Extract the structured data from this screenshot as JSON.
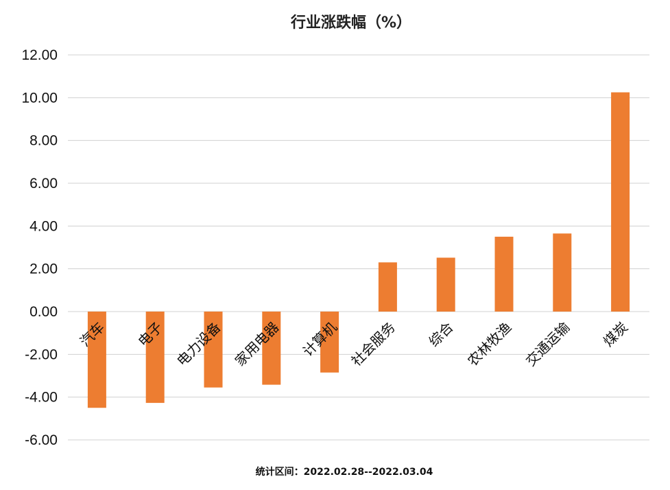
{
  "chart_data": {
    "type": "bar",
    "title": "行业涨跌幅（%）",
    "categories": [
      "汽车",
      "电子",
      "电力设备",
      "家用电器",
      "计算机",
      "社会服务",
      "综合",
      "农林牧渔",
      "交通运输",
      "煤炭"
    ],
    "values": [
      -4.5,
      -4.27,
      -3.55,
      -3.42,
      -2.85,
      2.3,
      2.52,
      3.5,
      3.65,
      10.25
    ],
    "ylim": [
      -6,
      12
    ],
    "yticks": [
      "12.00",
      "10.00",
      "8.00",
      "6.00",
      "4.00",
      "2.00",
      "0.00",
      "-2.00",
      "-4.00",
      "-6.00"
    ],
    "grid": true,
    "legend": "none",
    "bar_color": "#ED7D31",
    "footnote": "统计区间：2022.02.28--2022.03.04"
  }
}
